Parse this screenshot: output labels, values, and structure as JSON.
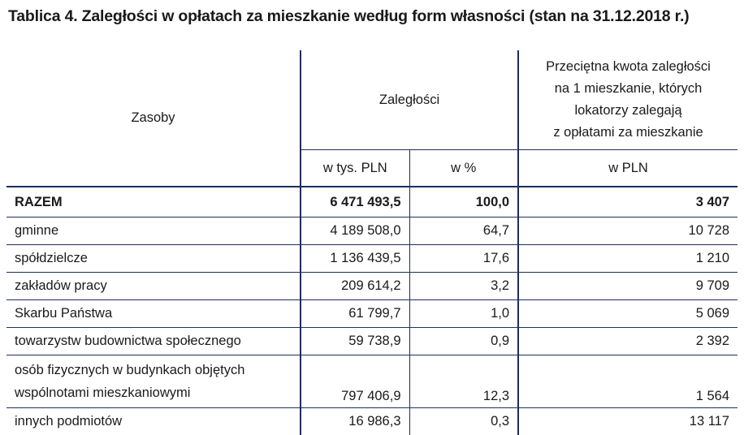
{
  "title": "Tablica 4. Zaległości w opłatach za mieszkanie według form własności (stan na 31.12.2018 r.)",
  "header": {
    "col1": "Zasoby",
    "col2": "Zaległości",
    "col4_lines": [
      "Przeciętna kwota zaległości",
      "na 1 mieszkanie, których",
      "lokatorzy zalegają",
      "z opłatami za mieszkanie"
    ],
    "sub": [
      "w tys. PLN",
      "w %",
      "w PLN"
    ]
  },
  "rows": [
    {
      "label": [
        "RAZEM"
      ],
      "tys": "6 471 493,5",
      "pct": "100,0",
      "pln": "3 407"
    },
    {
      "label": [
        "gminne"
      ],
      "tys": "4 189 508,0",
      "pct": "64,7",
      "pln": "10 728"
    },
    {
      "label": [
        "spółdzielcze"
      ],
      "tys": "1 136 439,5",
      "pct": "17,6",
      "pln": "1 210"
    },
    {
      "label": [
        "zakładów pracy"
      ],
      "tys": "209 614,2",
      "pct": "3,2",
      "pln": "9 709"
    },
    {
      "label": [
        "Skarbu Państwa"
      ],
      "tys": "61 799,7",
      "pct": "1,0",
      "pln": "5 069"
    },
    {
      "label": [
        "towarzystw budownictwa społecznego"
      ],
      "tys": "59 738,9",
      "pct": "0,9",
      "pln": "2 392"
    },
    {
      "label": [
        "osób fizycznych w budynkach objętych",
        "wspólnotami mieszkaniowymi"
      ],
      "tys": "797 406,9",
      "pct": "12,3",
      "pln": "1 564"
    },
    {
      "label": [
        "innych podmiotów"
      ],
      "tys": "16 986,3",
      "pct": "0,3",
      "pln": "13 117"
    }
  ]
}
